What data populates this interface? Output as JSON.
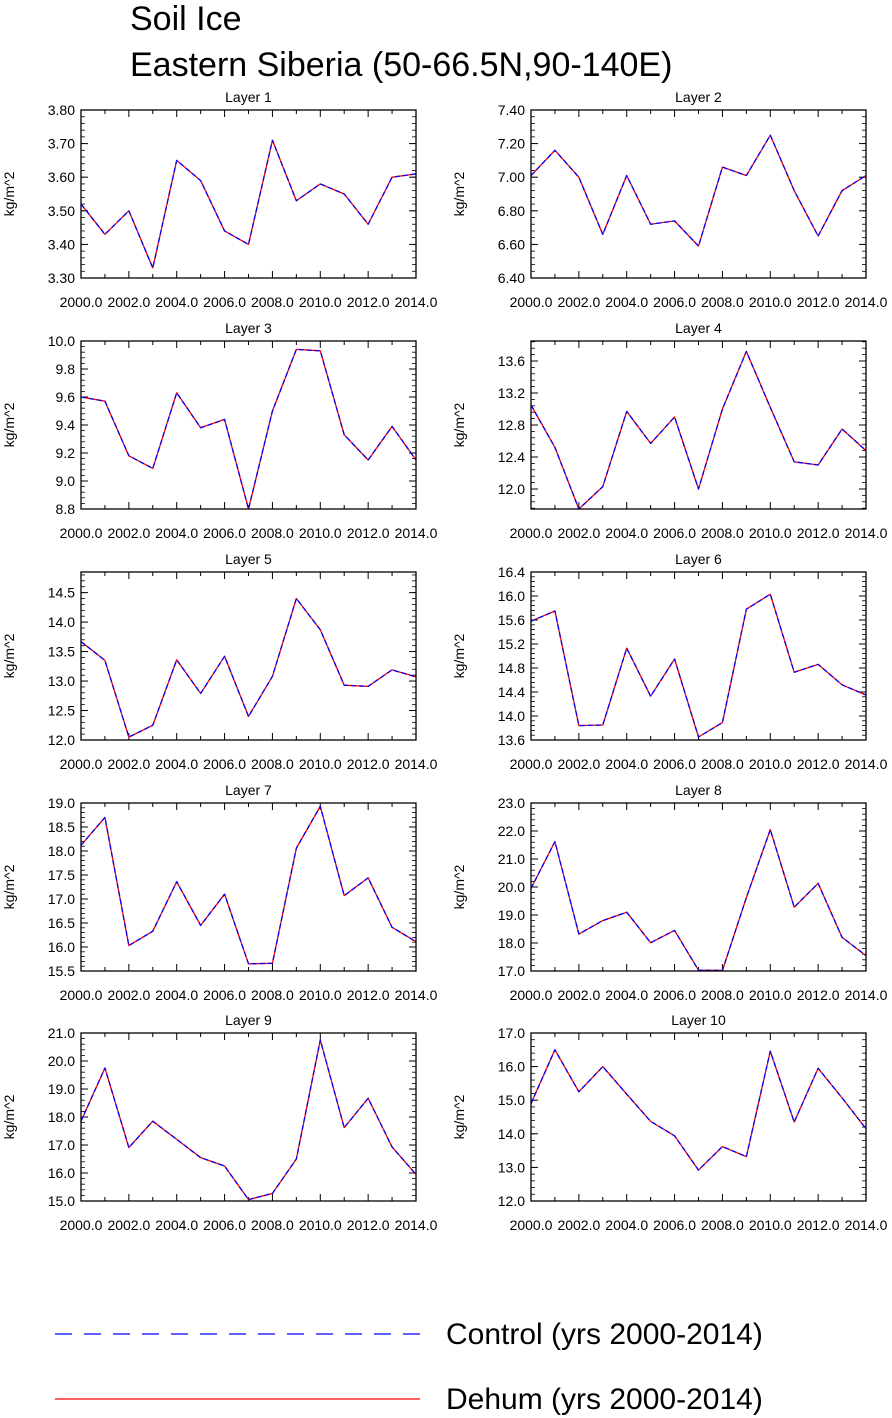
{
  "title": "Soil Ice",
  "subtitle": "Eastern Siberia (50-66.5N,90-140E)",
  "legend": [
    {
      "label": "Control (yrs 2000-2014)",
      "color": "#0000ff",
      "style": "dashed"
    },
    {
      "label": "Dehum (yrs 2000-2014)",
      "color": "#ff0000",
      "style": "solid"
    }
  ],
  "chart_data": [
    {
      "type": "line",
      "title": "Layer 1",
      "xlabel": "",
      "ylabel": "kg/m^2",
      "x": [
        2000,
        2001,
        2002,
        2003,
        2004,
        2005,
        2006,
        2007,
        2008,
        2009,
        2010,
        2011,
        2012,
        2013,
        2014
      ],
      "xlim": [
        2000,
        2014
      ],
      "xticks": [
        "2000.0",
        "2002.0",
        "2004.0",
        "2006.0",
        "2008.0",
        "2010.0",
        "2012.0",
        "2014.0"
      ],
      "ylim": [
        3.3,
        3.8
      ],
      "ytick_step": 0.1,
      "ytick_decimals": 2,
      "yticks": [
        "3.30",
        "3.40",
        "3.50",
        "3.60",
        "3.70",
        "3.80"
      ],
      "series": [
        {
          "name": "Control (yrs 2000-2014)",
          "values": [
            3.52,
            3.43,
            3.5,
            3.33,
            3.65,
            3.59,
            3.44,
            3.4,
            3.71,
            3.53,
            3.58,
            3.55,
            3.46,
            3.6,
            3.61
          ]
        },
        {
          "name": "Dehum (yrs 2000-2014)",
          "values": [
            3.52,
            3.43,
            3.5,
            3.33,
            3.65,
            3.59,
            3.44,
            3.4,
            3.71,
            3.53,
            3.58,
            3.55,
            3.46,
            3.6,
            3.61
          ]
        }
      ]
    },
    {
      "type": "line",
      "title": "Layer 2",
      "xlabel": "",
      "ylabel": "kg/m^2",
      "x": [
        2000,
        2001,
        2002,
        2003,
        2004,
        2005,
        2006,
        2007,
        2008,
        2009,
        2010,
        2011,
        2012,
        2013,
        2014
      ],
      "xlim": [
        2000,
        2014
      ],
      "xticks": [
        "2000.0",
        "2002.0",
        "2004.0",
        "2006.0",
        "2008.0",
        "2010.0",
        "2012.0",
        "2014.0"
      ],
      "ylim": [
        6.4,
        7.4
      ],
      "ytick_step": 0.2,
      "ytick_decimals": 2,
      "yticks": [
        "6.40",
        "6.60",
        "6.80",
        "7.00",
        "7.20",
        "7.40"
      ],
      "series": [
        {
          "name": "Control (yrs 2000-2014)",
          "values": [
            7.01,
            7.16,
            7.0,
            6.66,
            7.01,
            6.72,
            6.74,
            6.59,
            7.06,
            7.01,
            7.25,
            6.92,
            6.65,
            6.92,
            7.01
          ]
        },
        {
          "name": "Dehum (yrs 2000-2014)",
          "values": [
            7.01,
            7.16,
            7.0,
            6.66,
            7.01,
            6.72,
            6.74,
            6.59,
            7.06,
            7.01,
            7.25,
            6.92,
            6.65,
            6.92,
            7.01
          ]
        }
      ]
    },
    {
      "type": "line",
      "title": "Layer 3",
      "xlabel": "",
      "ylabel": "kg/m^2",
      "x": [
        2000,
        2001,
        2002,
        2003,
        2004,
        2005,
        2006,
        2007,
        2008,
        2009,
        2010,
        2011,
        2012,
        2013,
        2014
      ],
      "xlim": [
        2000,
        2014
      ],
      "xticks": [
        "2000.0",
        "2002.0",
        "2004.0",
        "2006.0",
        "2008.0",
        "2010.0",
        "2012.0",
        "2014.0"
      ],
      "ylim": [
        8.8,
        10.0
      ],
      "ytick_step": 0.2,
      "ytick_decimals": 1,
      "yticks": [
        "8.8",
        "9.0",
        "9.2",
        "9.4",
        "9.6",
        "9.8",
        "10.0"
      ],
      "series": [
        {
          "name": "Control (yrs 2000-2014)",
          "values": [
            9.6,
            9.57,
            9.18,
            9.09,
            9.63,
            9.38,
            9.44,
            8.8,
            9.5,
            9.94,
            9.93,
            9.33,
            9.15,
            9.39,
            9.15
          ]
        },
        {
          "name": "Dehum (yrs 2000-2014)",
          "values": [
            9.6,
            9.57,
            9.18,
            9.09,
            9.63,
            9.38,
            9.44,
            8.8,
            9.5,
            9.94,
            9.93,
            9.33,
            9.15,
            9.39,
            9.15
          ]
        }
      ]
    },
    {
      "type": "line",
      "title": "Layer 4",
      "xlabel": "",
      "ylabel": "kg/m^2",
      "x": [
        2000,
        2001,
        2002,
        2003,
        2004,
        2005,
        2006,
        2007,
        2008,
        2009,
        2010,
        2011,
        2012,
        2013,
        2014
      ],
      "xlim": [
        2000,
        2014
      ],
      "xticks": [
        "2000.0",
        "2002.0",
        "2004.0",
        "2006.0",
        "2008.0",
        "2010.0",
        "2012.0",
        "2014.0"
      ],
      "ylim": [
        11.75,
        13.85
      ],
      "ytick_step": 0.4,
      "ytick_decimals": 1,
      "yticks": [
        "12.0",
        "12.4",
        "12.8",
        "13.2",
        "13.6"
      ],
      "series": [
        {
          "name": "Control (yrs 2000-2014)",
          "values": [
            13.05,
            12.52,
            11.75,
            12.03,
            12.97,
            12.57,
            12.9,
            12.0,
            13.0,
            13.72,
            13.02,
            12.34,
            12.3,
            12.75,
            12.48
          ]
        },
        {
          "name": "Dehum (yrs 2000-2014)",
          "values": [
            13.05,
            12.52,
            11.75,
            12.03,
            12.97,
            12.57,
            12.9,
            12.0,
            13.0,
            13.72,
            13.02,
            12.34,
            12.3,
            12.75,
            12.48
          ]
        }
      ]
    },
    {
      "type": "line",
      "title": "Layer 5",
      "xlabel": "",
      "ylabel": "kg/m^2",
      "x": [
        2000,
        2001,
        2002,
        2003,
        2004,
        2005,
        2006,
        2007,
        2008,
        2009,
        2010,
        2011,
        2012,
        2013,
        2014
      ],
      "xlim": [
        2000,
        2014
      ],
      "xticks": [
        "2000.0",
        "2002.0",
        "2004.0",
        "2006.0",
        "2008.0",
        "2010.0",
        "2012.0",
        "2014.0"
      ],
      "ylim": [
        12.0,
        14.85
      ],
      "ytick_step": 0.5,
      "ytick_decimals": 1,
      "yticks": [
        "12.0",
        "12.5",
        "13.0",
        "13.5",
        "14.0",
        "14.5"
      ],
      "series": [
        {
          "name": "Control (yrs 2000-2014)",
          "values": [
            13.67,
            13.35,
            12.05,
            12.25,
            13.36,
            12.79,
            13.42,
            12.4,
            13.08,
            14.4,
            13.87,
            12.93,
            12.91,
            13.19,
            13.07
          ]
        },
        {
          "name": "Dehum (yrs 2000-2014)",
          "values": [
            13.67,
            13.35,
            12.05,
            12.25,
            13.36,
            12.79,
            13.42,
            12.4,
            13.08,
            14.4,
            13.87,
            12.93,
            12.91,
            13.19,
            13.07
          ]
        }
      ]
    },
    {
      "type": "line",
      "title": "Layer 6",
      "xlabel": "",
      "ylabel": "kg/m^2",
      "x": [
        2000,
        2001,
        2002,
        2003,
        2004,
        2005,
        2006,
        2007,
        2008,
        2009,
        2010,
        2011,
        2012,
        2013,
        2014
      ],
      "xlim": [
        2000,
        2014
      ],
      "xticks": [
        "2000.0",
        "2002.0",
        "2004.0",
        "2006.0",
        "2008.0",
        "2010.0",
        "2012.0",
        "2014.0"
      ],
      "ylim": [
        13.6,
        16.4
      ],
      "ytick_step": 0.4,
      "ytick_decimals": 1,
      "yticks": [
        "13.6",
        "14.0",
        "14.4",
        "14.8",
        "15.2",
        "15.6",
        "16.0",
        "16.4"
      ],
      "series": [
        {
          "name": "Control (yrs 2000-2014)",
          "values": [
            15.58,
            15.75,
            13.84,
            13.85,
            15.13,
            14.33,
            14.95,
            13.65,
            13.89,
            15.78,
            16.03,
            14.73,
            14.86,
            14.52,
            14.35
          ]
        },
        {
          "name": "Dehum (yrs 2000-2014)",
          "values": [
            15.58,
            15.75,
            13.84,
            13.85,
            15.13,
            14.33,
            14.95,
            13.65,
            13.89,
            15.78,
            16.03,
            14.73,
            14.86,
            14.52,
            14.35
          ]
        }
      ]
    },
    {
      "type": "line",
      "title": "Layer 7",
      "xlabel": "",
      "ylabel": "kg/m^2",
      "x": [
        2000,
        2001,
        2002,
        2003,
        2004,
        2005,
        2006,
        2007,
        2008,
        2009,
        2010,
        2011,
        2012,
        2013,
        2014
      ],
      "xlim": [
        2000,
        2014
      ],
      "xticks": [
        "2000.0",
        "2002.0",
        "2004.0",
        "2006.0",
        "2008.0",
        "2010.0",
        "2012.0",
        "2014.0"
      ],
      "ylim": [
        15.5,
        19.0
      ],
      "ytick_step": 0.5,
      "ytick_decimals": 1,
      "yticks": [
        "15.5",
        "16.0",
        "16.5",
        "17.0",
        "17.5",
        "18.0",
        "18.5",
        "19.0"
      ],
      "series": [
        {
          "name": "Control (yrs 2000-2014)",
          "values": [
            18.12,
            18.7,
            16.03,
            16.33,
            17.36,
            16.45,
            17.1,
            15.65,
            15.66,
            18.06,
            18.93,
            17.07,
            17.44,
            16.41,
            16.11
          ]
        },
        {
          "name": "Dehum (yrs 2000-2014)",
          "values": [
            18.12,
            18.7,
            16.03,
            16.33,
            17.36,
            16.45,
            17.1,
            15.65,
            15.66,
            18.06,
            18.93,
            17.07,
            17.44,
            16.41,
            16.11
          ]
        }
      ]
    },
    {
      "type": "line",
      "title": "Layer 8",
      "xlabel": "",
      "ylabel": "kg/m^2",
      "x": [
        2000,
        2001,
        2002,
        2003,
        2004,
        2005,
        2006,
        2007,
        2008,
        2009,
        2010,
        2011,
        2012,
        2013,
        2014
      ],
      "xlim": [
        2000,
        2014
      ],
      "xticks": [
        "2000.0",
        "2002.0",
        "2004.0",
        "2006.0",
        "2008.0",
        "2010.0",
        "2012.0",
        "2014.0"
      ],
      "ylim": [
        17.0,
        23.0
      ],
      "ytick_step": 1,
      "ytick_decimals": 1,
      "yticks": [
        "17.0",
        "18.0",
        "19.0",
        "20.0",
        "21.0",
        "22.0",
        "23.0"
      ],
      "series": [
        {
          "name": "Control (yrs 2000-2014)",
          "values": [
            19.95,
            21.62,
            18.32,
            18.8,
            19.1,
            18.01,
            18.45,
            17.03,
            17.02,
            19.62,
            22.05,
            19.28,
            20.13,
            18.2,
            17.55
          ]
        },
        {
          "name": "Dehum (yrs 2000-2014)",
          "values": [
            19.95,
            21.62,
            18.32,
            18.8,
            19.1,
            18.01,
            18.45,
            17.03,
            17.02,
            19.62,
            22.05,
            19.28,
            20.13,
            18.2,
            17.55
          ]
        }
      ]
    },
    {
      "type": "line",
      "title": "Layer 9",
      "xlabel": "",
      "ylabel": "kg/m^2",
      "x": [
        2000,
        2001,
        2002,
        2003,
        2004,
        2005,
        2006,
        2007,
        2008,
        2009,
        2010,
        2011,
        2012,
        2013,
        2014
      ],
      "xlim": [
        2000,
        2014
      ],
      "xticks": [
        "2000.0",
        "2002.0",
        "2004.0",
        "2006.0",
        "2008.0",
        "2010.0",
        "2012.0",
        "2014.0"
      ],
      "ylim": [
        15.0,
        21.0
      ],
      "ytick_step": 1,
      "ytick_decimals": 1,
      "yticks": [
        "15.0",
        "16.0",
        "17.0",
        "18.0",
        "19.0",
        "20.0",
        "21.0"
      ],
      "series": [
        {
          "name": "Control (yrs 2000-2014)",
          "values": [
            17.85,
            19.75,
            16.91,
            17.85,
            17.2,
            16.55,
            16.25,
            15.05,
            15.27,
            16.5,
            20.75,
            17.62,
            18.67,
            16.93,
            15.95
          ]
        },
        {
          "name": "Dehum (yrs 2000-2014)",
          "values": [
            17.85,
            19.75,
            16.91,
            17.85,
            17.2,
            16.55,
            16.25,
            15.05,
            15.27,
            16.5,
            20.75,
            17.62,
            18.67,
            16.93,
            15.95
          ]
        }
      ]
    },
    {
      "type": "line",
      "title": "Layer 10",
      "xlabel": "",
      "ylabel": "kg/m^2",
      "x": [
        2000,
        2001,
        2002,
        2003,
        2004,
        2005,
        2006,
        2007,
        2008,
        2009,
        2010,
        2011,
        2012,
        2013,
        2014
      ],
      "xlim": [
        2000,
        2014
      ],
      "xticks": [
        "2000.0",
        "2002.0",
        "2004.0",
        "2006.0",
        "2008.0",
        "2010.0",
        "2012.0",
        "2014.0"
      ],
      "ylim": [
        12.0,
        17.0
      ],
      "ytick_step": 1,
      "ytick_decimals": 1,
      "yticks": [
        "12.0",
        "13.0",
        "14.0",
        "15.0",
        "16.0",
        "17.0"
      ],
      "series": [
        {
          "name": "Control (yrs 2000-2014)",
          "values": [
            14.9,
            16.5,
            15.25,
            16.0,
            15.18,
            14.37,
            13.94,
            12.92,
            13.62,
            13.32,
            16.46,
            14.35,
            15.95,
            15.07,
            14.15
          ]
        },
        {
          "name": "Dehum (yrs 2000-2014)",
          "values": [
            14.9,
            16.5,
            15.25,
            16.0,
            15.18,
            14.37,
            13.94,
            12.92,
            13.62,
            13.32,
            16.46,
            14.35,
            15.95,
            15.07,
            14.15
          ]
        }
      ]
    }
  ]
}
